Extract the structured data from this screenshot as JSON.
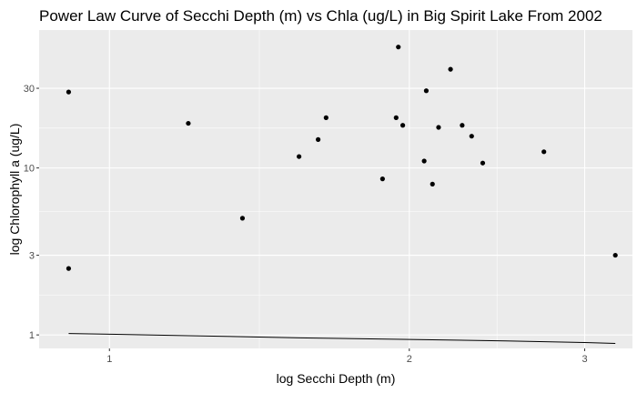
{
  "chart_data": {
    "type": "scatter",
    "title": "Power Law Curve of Secchi Depth (m) vs Chla (ug/L) in Big Spirit Lake From 2002",
    "xlabel": "log Secchi Depth (m)",
    "ylabel": "log Chlorophyll a (ug/L)",
    "x_scale": "log10",
    "y_scale": "log10",
    "xlim": [
      0.85,
      3.35
    ],
    "ylim": [
      0.83,
      67
    ],
    "x_ticks": [
      1,
      2,
      3
    ],
    "x_tick_labels": [
      "1",
      "2",
      "3"
    ],
    "y_ticks": [
      1,
      3,
      10,
      30
    ],
    "y_tick_labels": [
      "1",
      "3",
      "10",
      "30"
    ],
    "grid": true,
    "legend": "none",
    "points": [
      {
        "x": 0.91,
        "y": 28.5
      },
      {
        "x": 0.91,
        "y": 2.5
      },
      {
        "x": 1.2,
        "y": 18.5
      },
      {
        "x": 1.36,
        "y": 5.0
      },
      {
        "x": 1.55,
        "y": 11.7
      },
      {
        "x": 1.62,
        "y": 14.8
      },
      {
        "x": 1.65,
        "y": 20.0
      },
      {
        "x": 1.88,
        "y": 8.6
      },
      {
        "x": 1.94,
        "y": 20.0
      },
      {
        "x": 1.95,
        "y": 53.0
      },
      {
        "x": 1.97,
        "y": 18.0
      },
      {
        "x": 2.07,
        "y": 11.0
      },
      {
        "x": 2.08,
        "y": 29.0
      },
      {
        "x": 2.11,
        "y": 8.0
      },
      {
        "x": 2.14,
        "y": 17.5
      },
      {
        "x": 2.2,
        "y": 39.0
      },
      {
        "x": 2.26,
        "y": 18.0
      },
      {
        "x": 2.31,
        "y": 15.5
      },
      {
        "x": 2.37,
        "y": 10.7
      },
      {
        "x": 2.73,
        "y": 12.5
      },
      {
        "x": 3.22,
        "y": 3.0
      }
    ],
    "fit_line": {
      "x": [
        0.91,
        1.2,
        1.55,
        2.0,
        2.5,
        3.0,
        3.22
      ],
      "y": [
        1.02,
        0.99,
        0.96,
        0.94,
        0.92,
        0.9,
        0.89
      ]
    },
    "colors": {
      "panel_background": "#ebebeb",
      "grid_major": "#ffffff",
      "points": "#000000",
      "fit_line": "#000000"
    }
  }
}
